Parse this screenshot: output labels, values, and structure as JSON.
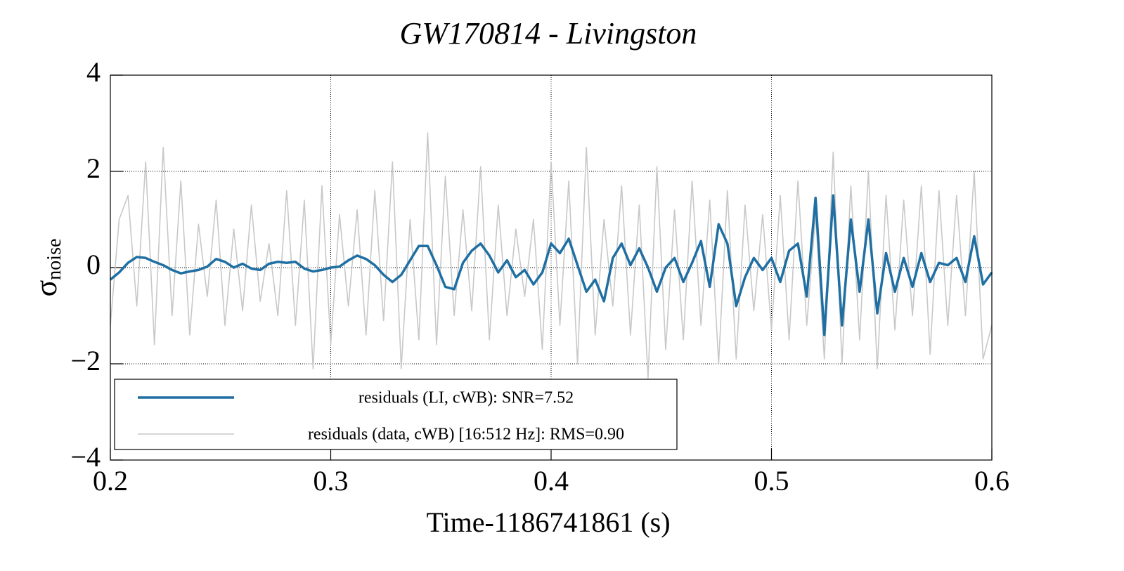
{
  "chart_data": {
    "type": "line",
    "title": "GW170814 - Livingston",
    "xlabel": "Time-1186741861 (s)",
    "ylabel": {
      "symbol": "σ",
      "subscript": "noise"
    },
    "xlim": [
      0.2,
      0.6
    ],
    "xticks": [
      0.2,
      0.3,
      0.4,
      0.5,
      0.6
    ],
    "ylim": [
      -4,
      4
    ],
    "yticks": [
      {
        "value": -4,
        "label": "−4"
      },
      {
        "value": -2,
        "label": "−2"
      },
      0,
      2,
      4
    ],
    "grid": true,
    "legend": "lower left",
    "x": [
      0.2,
      0.204,
      0.208,
      0.212,
      0.216,
      0.22,
      0.224,
      0.228,
      0.232,
      0.236,
      0.24,
      0.244,
      0.248,
      0.252,
      0.256,
      0.26,
      0.264,
      0.268,
      0.272,
      0.276,
      0.28,
      0.284,
      0.288,
      0.292,
      0.296,
      0.3,
      0.304,
      0.308,
      0.312,
      0.316,
      0.32,
      0.324,
      0.328,
      0.332,
      0.336,
      0.34,
      0.344,
      0.348,
      0.352,
      0.356,
      0.36,
      0.364,
      0.368,
      0.372,
      0.376,
      0.38,
      0.384,
      0.388,
      0.392,
      0.396,
      0.4,
      0.404,
      0.408,
      0.412,
      0.416,
      0.42,
      0.424,
      0.428,
      0.432,
      0.436,
      0.44,
      0.444,
      0.448,
      0.452,
      0.456,
      0.46,
      0.464,
      0.468,
      0.472,
      0.476,
      0.48,
      0.484,
      0.488,
      0.492,
      0.496,
      0.5,
      0.504,
      0.508,
      0.512,
      0.516,
      0.52,
      0.524,
      0.528,
      0.532,
      0.536,
      0.54,
      0.544,
      0.548,
      0.552,
      0.556,
      0.56,
      0.564,
      0.568,
      0.572,
      0.576,
      0.58,
      0.584,
      0.588,
      0.592,
      0.596,
      0.6
    ],
    "series": [
      {
        "name": "residuals (data, cWB) [16:512 Hz]: RMS=0.90",
        "color": "#c8c8c8",
        "values": [
          -1.2,
          1.0,
          1.5,
          -0.8,
          2.2,
          -1.6,
          2.5,
          -1.0,
          1.8,
          -1.4,
          0.9,
          -0.6,
          1.4,
          -1.2,
          0.8,
          -0.9,
          1.3,
          -0.7,
          0.5,
          -1.0,
          1.6,
          -1.2,
          1.4,
          -2.1,
          1.7,
          -1.6,
          1.1,
          -0.8,
          1.2,
          -1.4,
          1.6,
          -1.1,
          2.2,
          -2.1,
          1.0,
          -1.5,
          2.8,
          -1.6,
          1.9,
          -1.0,
          1.2,
          -0.9,
          2.1,
          -1.5,
          1.3,
          -1.0,
          0.8,
          -0.6,
          1.0,
          -1.7,
          2.2,
          -1.2,
          1.8,
          -2.0,
          2.5,
          -1.4,
          1.0,
          -0.8,
          1.7,
          -1.4,
          1.3,
          -2.3,
          2.1,
          -1.7,
          1.2,
          -1.5,
          1.8,
          -1.2,
          1.4,
          -2.0,
          1.6,
          -1.9,
          1.3,
          -0.9,
          1.1,
          -1.3,
          1.5,
          -1.5,
          1.8,
          -1.2,
          1.1,
          -1.9,
          2.4,
          -2.0,
          1.7,
          -1.5,
          2.0,
          -2.1,
          1.5,
          -1.3,
          1.4,
          -1.0,
          1.7,
          -1.8,
          1.6,
          -1.2,
          1.5,
          -1.0,
          2.0,
          -1.9,
          -1.2
        ]
      },
      {
        "name": "residuals (LI, cWB): SNR=7.52",
        "color": "#1f6fa3",
        "values": [
          -0.25,
          -0.1,
          0.1,
          0.22,
          0.2,
          0.12,
          0.05,
          -0.05,
          -0.12,
          -0.08,
          -0.05,
          0.02,
          0.18,
          0.12,
          0.0,
          0.08,
          -0.02,
          -0.05,
          0.08,
          0.12,
          0.1,
          0.12,
          -0.02,
          -0.08,
          -0.05,
          0.0,
          0.02,
          0.15,
          0.25,
          0.18,
          0.05,
          -0.15,
          -0.3,
          -0.15,
          0.15,
          0.45,
          0.45,
          0.05,
          -0.4,
          -0.45,
          0.1,
          0.35,
          0.5,
          0.25,
          -0.1,
          0.15,
          -0.2,
          -0.05,
          -0.35,
          -0.1,
          0.5,
          0.3,
          0.6,
          0.05,
          -0.5,
          -0.25,
          -0.7,
          0.2,
          0.5,
          0.05,
          0.4,
          0.0,
          -0.5,
          0.0,
          0.2,
          -0.3,
          0.1,
          0.55,
          -0.4,
          0.9,
          0.5,
          -0.8,
          -0.2,
          0.2,
          -0.05,
          0.2,
          -0.3,
          0.35,
          0.5,
          -0.6,
          1.45,
          -1.4,
          1.5,
          -1.2,
          1.0,
          -0.5,
          1.0,
          -0.95,
          0.3,
          -0.5,
          0.2,
          -0.4,
          0.3,
          -0.3,
          0.1,
          0.05,
          0.2,
          -0.3,
          0.65,
          -0.35,
          -0.1
        ]
      }
    ]
  }
}
